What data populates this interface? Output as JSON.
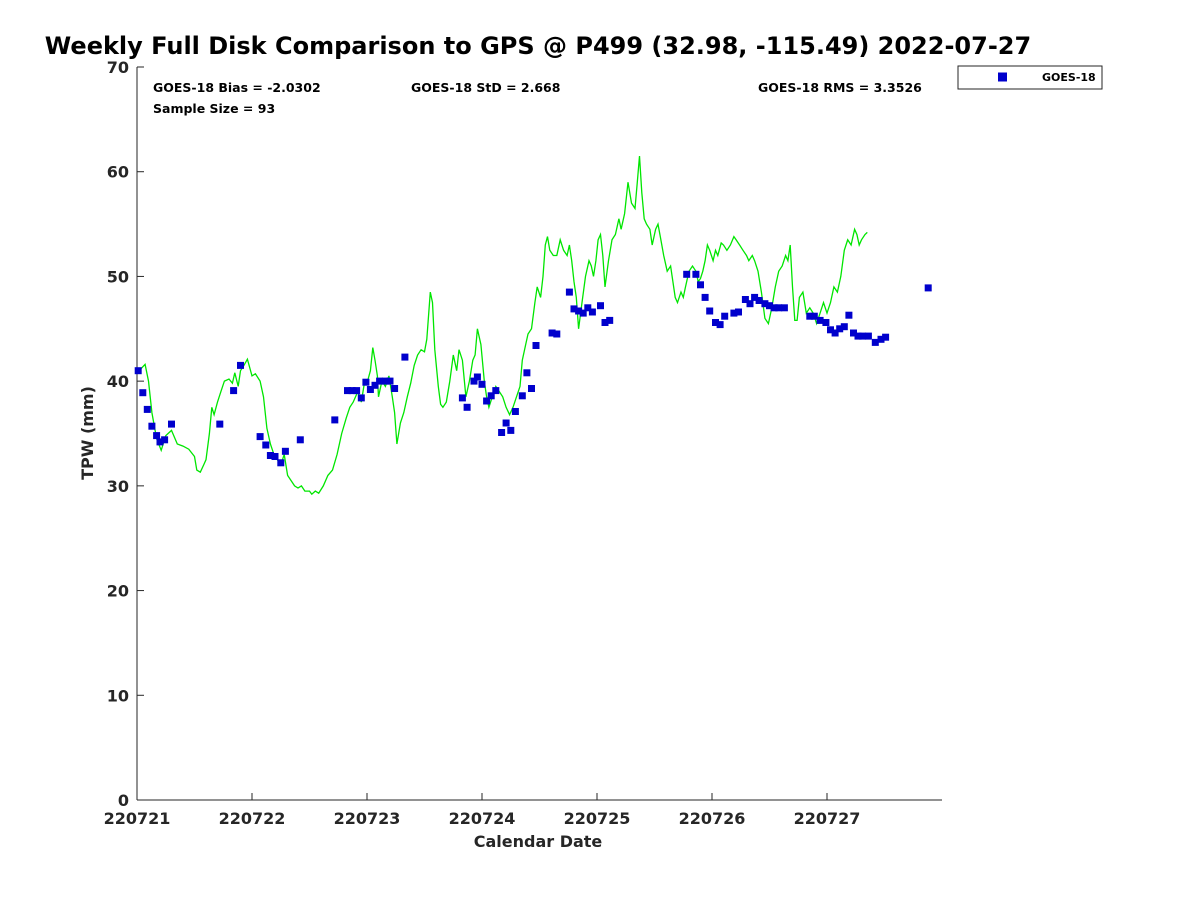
{
  "chart_data": {
    "type": "scatter",
    "title": "Weekly Full Disk Comparison to GPS @ P499 (32.98, -115.49) 2022-07-27",
    "xlabel": "Calendar Date",
    "ylabel": "TPW (mm)",
    "xlim": [
      0,
      7
    ],
    "ylim": [
      0,
      70
    ],
    "x_tick_values": [
      0,
      1,
      2,
      3,
      4,
      5,
      6
    ],
    "x_tick_labels": [
      "220721",
      "220722",
      "220723",
      "220724",
      "220725",
      "220726",
      "220727"
    ],
    "y_ticks": [
      0,
      10,
      20,
      30,
      40,
      50,
      60,
      70
    ],
    "y_tick_labels": [
      "0",
      "10",
      "20",
      "30",
      "40",
      "50",
      "60",
      "70"
    ],
    "stats": {
      "bias": "GOES-18 Bias = -2.0302",
      "std": "GOES-18 StD = 2.668",
      "rms": "GOES-18 RMS = 3.3526",
      "sample_size": "Sample Size = 93"
    },
    "legend": {
      "label": "GOES-18",
      "position": "top-right",
      "color": "#0000cc"
    },
    "gps_line": {
      "name": "GPS",
      "color": "#00e600",
      "anchors": [
        [
          0.0,
          40.8
        ],
        [
          0.07,
          41.6
        ],
        [
          0.1,
          40.0
        ],
        [
          0.13,
          37.0
        ],
        [
          0.17,
          34.5
        ],
        [
          0.21,
          33.4
        ],
        [
          0.25,
          34.8
        ],
        [
          0.3,
          35.3
        ],
        [
          0.35,
          34.0
        ],
        [
          0.4,
          33.8
        ],
        [
          0.45,
          33.5
        ],
        [
          0.5,
          32.8
        ],
        [
          0.52,
          31.5
        ],
        [
          0.55,
          31.3
        ],
        [
          0.58,
          32.0
        ],
        [
          0.6,
          32.5
        ],
        [
          0.63,
          35.0
        ],
        [
          0.65,
          37.5
        ],
        [
          0.67,
          36.8
        ],
        [
          0.7,
          38.0
        ],
        [
          0.73,
          39.0
        ],
        [
          0.76,
          40.0
        ],
        [
          0.8,
          40.2
        ],
        [
          0.83,
          39.8
        ],
        [
          0.85,
          40.8
        ],
        [
          0.88,
          39.5
        ],
        [
          0.9,
          41.0
        ],
        [
          0.93,
          41.5
        ],
        [
          0.96,
          42.1
        ],
        [
          1.0,
          40.5
        ],
        [
          1.03,
          40.7
        ],
        [
          1.07,
          40.0
        ],
        [
          1.1,
          38.5
        ],
        [
          1.13,
          35.5
        ],
        [
          1.16,
          34.0
        ],
        [
          1.19,
          33.0
        ],
        [
          1.22,
          32.5
        ],
        [
          1.25,
          32.0
        ],
        [
          1.28,
          33.0
        ],
        [
          1.31,
          31.0
        ],
        [
          1.34,
          30.5
        ],
        [
          1.37,
          30.0
        ],
        [
          1.4,
          29.8
        ],
        [
          1.43,
          30.0
        ],
        [
          1.46,
          29.5
        ],
        [
          1.5,
          29.5
        ],
        [
          1.52,
          29.2
        ],
        [
          1.55,
          29.5
        ],
        [
          1.58,
          29.3
        ],
        [
          1.62,
          30.0
        ],
        [
          1.66,
          31.0
        ],
        [
          1.7,
          31.5
        ],
        [
          1.74,
          33.0
        ],
        [
          1.78,
          35.0
        ],
        [
          1.82,
          36.5
        ],
        [
          1.85,
          37.5
        ],
        [
          1.88,
          38.0
        ],
        [
          1.92,
          39.0
        ],
        [
          1.95,
          38.0
        ],
        [
          1.98,
          40.0
        ],
        [
          2.0,
          39.8
        ],
        [
          2.03,
          41.0
        ],
        [
          2.05,
          43.2
        ],
        [
          2.07,
          42.0
        ],
        [
          2.09,
          40.5
        ],
        [
          2.1,
          38.5
        ],
        [
          2.13,
          40.0
        ],
        [
          2.16,
          39.5
        ],
        [
          2.19,
          40.5
        ],
        [
          2.22,
          38.5
        ],
        [
          2.24,
          37.0
        ],
        [
          2.26,
          34.0
        ],
        [
          2.29,
          36.0
        ],
        [
          2.32,
          37.0
        ],
        [
          2.35,
          38.5
        ],
        [
          2.38,
          39.8
        ],
        [
          2.41,
          41.5
        ],
        [
          2.44,
          42.5
        ],
        [
          2.47,
          43.0
        ],
        [
          2.5,
          42.8
        ],
        [
          2.52,
          44.0
        ],
        [
          2.55,
          48.5
        ],
        [
          2.57,
          47.5
        ],
        [
          2.59,
          43.0
        ],
        [
          2.62,
          39.5
        ],
        [
          2.64,
          37.8
        ],
        [
          2.66,
          37.5
        ],
        [
          2.69,
          38.0
        ],
        [
          2.72,
          40.0
        ],
        [
          2.75,
          42.5
        ],
        [
          2.78,
          41.0
        ],
        [
          2.8,
          43.0
        ],
        [
          2.83,
          42.0
        ],
        [
          2.86,
          38.5
        ],
        [
          2.89,
          40.0
        ],
        [
          2.92,
          42.0
        ],
        [
          2.94,
          42.5
        ],
        [
          2.96,
          45.0
        ],
        [
          2.99,
          43.5
        ],
        [
          3.02,
          40.0
        ],
        [
          3.04,
          38.5
        ],
        [
          3.06,
          37.5
        ],
        [
          3.09,
          38.5
        ],
        [
          3.12,
          39.5
        ],
        [
          3.15,
          39.0
        ],
        [
          3.18,
          38.5
        ],
        [
          3.21,
          37.5
        ],
        [
          3.24,
          36.8
        ],
        [
          3.27,
          37.5
        ],
        [
          3.3,
          38.5
        ],
        [
          3.33,
          39.5
        ],
        [
          3.35,
          42.0
        ],
        [
          3.38,
          43.5
        ],
        [
          3.4,
          44.5
        ],
        [
          3.43,
          45.0
        ],
        [
          3.46,
          47.5
        ],
        [
          3.48,
          49.0
        ],
        [
          3.51,
          48.0
        ],
        [
          3.53,
          50.0
        ],
        [
          3.55,
          53.0
        ],
        [
          3.57,
          53.8
        ],
        [
          3.59,
          52.5
        ],
        [
          3.62,
          52.0
        ],
        [
          3.65,
          52.0
        ],
        [
          3.68,
          53.5
        ],
        [
          3.71,
          52.5
        ],
        [
          3.74,
          52.0
        ],
        [
          3.76,
          53.0
        ],
        [
          3.78,
          51.5
        ],
        [
          3.8,
          49.5
        ],
        [
          3.82,
          48.0
        ],
        [
          3.84,
          45.0
        ],
        [
          3.87,
          47.5
        ],
        [
          3.9,
          50.0
        ],
        [
          3.93,
          51.5
        ],
        [
          3.95,
          51.0
        ],
        [
          3.97,
          50.0
        ],
        [
          3.99,
          51.5
        ],
        [
          4.01,
          53.5
        ],
        [
          4.03,
          54.0
        ],
        [
          4.05,
          52.0
        ],
        [
          4.07,
          49.0
        ],
        [
          4.1,
          51.5
        ],
        [
          4.13,
          53.5
        ],
        [
          4.16,
          54.0
        ],
        [
          4.19,
          55.5
        ],
        [
          4.21,
          54.5
        ],
        [
          4.24,
          56.0
        ],
        [
          4.27,
          59.0
        ],
        [
          4.3,
          57.0
        ],
        [
          4.33,
          56.5
        ],
        [
          4.35,
          59.0
        ],
        [
          4.37,
          61.5
        ],
        [
          4.39,
          58.0
        ],
        [
          4.41,
          55.5
        ],
        [
          4.43,
          55.0
        ],
        [
          4.46,
          54.5
        ],
        [
          4.48,
          53.0
        ],
        [
          4.51,
          54.5
        ],
        [
          4.53,
          55.0
        ],
        [
          4.55,
          53.8
        ],
        [
          4.58,
          52.0
        ],
        [
          4.61,
          50.5
        ],
        [
          4.64,
          51.0
        ],
        [
          4.66,
          49.5
        ],
        [
          4.68,
          48.0
        ],
        [
          4.7,
          47.5
        ],
        [
          4.73,
          48.5
        ],
        [
          4.75,
          48.0
        ],
        [
          4.77,
          49.0
        ],
        [
          4.8,
          50.5
        ],
        [
          4.83,
          51.0
        ],
        [
          4.86,
          50.5
        ],
        [
          4.88,
          49.5
        ],
        [
          4.9,
          49.8
        ],
        [
          4.92,
          50.5
        ],
        [
          4.94,
          51.5
        ],
        [
          4.96,
          53.0
        ],
        [
          4.98,
          52.5
        ],
        [
          5.01,
          51.5
        ],
        [
          5.03,
          52.5
        ],
        [
          5.05,
          52.0
        ],
        [
          5.08,
          53.2
        ],
        [
          5.1,
          53.0
        ],
        [
          5.13,
          52.5
        ],
        [
          5.16,
          53.0
        ],
        [
          5.19,
          53.8
        ],
        [
          5.21,
          53.5
        ],
        [
          5.24,
          53.0
        ],
        [
          5.27,
          52.5
        ],
        [
          5.3,
          52.0
        ],
        [
          5.32,
          51.5
        ],
        [
          5.35,
          52.0
        ],
        [
          5.37,
          51.5
        ],
        [
          5.4,
          50.5
        ],
        [
          5.43,
          48.5
        ],
        [
          5.46,
          46.0
        ],
        [
          5.49,
          45.5
        ],
        [
          5.52,
          47.0
        ],
        [
          5.55,
          49.0
        ],
        [
          5.58,
          50.5
        ],
        [
          5.61,
          51.0
        ],
        [
          5.64,
          52.0
        ],
        [
          5.66,
          51.5
        ],
        [
          5.68,
          53.0
        ],
        [
          5.7,
          49.0
        ],
        [
          5.72,
          45.8
        ],
        [
          5.74,
          45.8
        ],
        [
          5.76,
          48.0
        ],
        [
          5.79,
          48.5
        ],
        [
          5.82,
          46.5
        ],
        [
          5.85,
          47.0
        ],
        [
          5.88,
          46.5
        ],
        [
          5.91,
          45.5
        ],
        [
          5.94,
          46.5
        ],
        [
          5.97,
          47.5
        ],
        [
          6.0,
          46.5
        ],
        [
          6.03,
          47.5
        ],
        [
          6.06,
          49.0
        ],
        [
          6.09,
          48.5
        ],
        [
          6.12,
          50.0
        ],
        [
          6.15,
          52.5
        ],
        [
          6.18,
          53.5
        ],
        [
          6.21,
          53.0
        ],
        [
          6.24,
          54.5
        ],
        [
          6.26,
          54.0
        ],
        [
          6.28,
          53.0
        ],
        [
          6.3,
          53.5
        ],
        [
          6.33,
          54.0
        ],
        [
          6.35,
          54.2
        ]
      ]
    },
    "series": [
      {
        "name": "GOES-18",
        "color": "#0000cc",
        "points": [
          [
            0.01,
            41.0
          ],
          [
            0.05,
            38.9
          ],
          [
            0.09,
            37.3
          ],
          [
            0.13,
            35.7
          ],
          [
            0.17,
            34.8
          ],
          [
            0.2,
            34.2
          ],
          [
            0.24,
            34.4
          ],
          [
            0.3,
            35.9
          ],
          [
            0.72,
            35.9
          ],
          [
            0.84,
            39.1
          ],
          [
            0.9,
            41.5
          ],
          [
            1.07,
            34.7
          ],
          [
            1.12,
            33.9
          ],
          [
            1.16,
            32.9
          ],
          [
            1.2,
            32.8
          ],
          [
            1.25,
            32.2
          ],
          [
            1.29,
            33.3
          ],
          [
            1.42,
            34.4
          ],
          [
            1.72,
            36.3
          ],
          [
            1.83,
            39.1
          ],
          [
            1.87,
            39.1
          ],
          [
            1.91,
            39.1
          ],
          [
            1.95,
            38.4
          ],
          [
            1.99,
            39.9
          ],
          [
            2.03,
            39.2
          ],
          [
            2.07,
            39.6
          ],
          [
            2.11,
            40.0
          ],
          [
            2.16,
            40.0
          ],
          [
            2.2,
            40.0
          ],
          [
            2.24,
            39.3
          ],
          [
            2.33,
            42.3
          ],
          [
            2.83,
            38.4
          ],
          [
            2.87,
            37.5
          ],
          [
            2.93,
            40.0
          ],
          [
            2.96,
            40.4
          ],
          [
            3.0,
            39.7
          ],
          [
            3.04,
            38.1
          ],
          [
            3.08,
            38.6
          ],
          [
            3.12,
            39.1
          ],
          [
            3.17,
            35.1
          ],
          [
            3.21,
            36.0
          ],
          [
            3.25,
            35.3
          ],
          [
            3.29,
            37.1
          ],
          [
            3.35,
            38.6
          ],
          [
            3.39,
            40.8
          ],
          [
            3.43,
            39.3
          ],
          [
            3.47,
            43.4
          ],
          [
            3.61,
            44.6
          ],
          [
            3.65,
            44.5
          ],
          [
            3.76,
            48.5
          ],
          [
            3.8,
            46.9
          ],
          [
            3.84,
            46.7
          ],
          [
            3.88,
            46.5
          ],
          [
            3.92,
            47.0
          ],
          [
            3.96,
            46.6
          ],
          [
            4.03,
            47.2
          ],
          [
            4.07,
            45.6
          ],
          [
            4.11,
            45.8
          ],
          [
            4.78,
            50.2
          ],
          [
            4.86,
            50.2
          ],
          [
            4.9,
            49.2
          ],
          [
            4.94,
            48.0
          ],
          [
            4.98,
            46.7
          ],
          [
            5.03,
            45.6
          ],
          [
            5.07,
            45.4
          ],
          [
            5.11,
            46.2
          ],
          [
            5.19,
            46.5
          ],
          [
            5.23,
            46.6
          ],
          [
            5.29,
            47.8
          ],
          [
            5.33,
            47.4
          ],
          [
            5.37,
            48.0
          ],
          [
            5.41,
            47.7
          ],
          [
            5.46,
            47.4
          ],
          [
            5.5,
            47.2
          ],
          [
            5.54,
            47.0
          ],
          [
            5.58,
            47.0
          ],
          [
            5.63,
            47.0
          ],
          [
            5.85,
            46.2
          ],
          [
            5.89,
            46.2
          ],
          [
            5.94,
            45.8
          ],
          [
            5.99,
            45.6
          ],
          [
            6.03,
            44.9
          ],
          [
            6.07,
            44.6
          ],
          [
            6.11,
            45.0
          ],
          [
            6.15,
            45.2
          ],
          [
            6.19,
            46.3
          ],
          [
            6.23,
            44.6
          ],
          [
            6.27,
            44.3
          ],
          [
            6.31,
            44.3
          ],
          [
            6.36,
            44.3
          ],
          [
            6.42,
            43.7
          ],
          [
            6.47,
            44.0
          ],
          [
            6.51,
            44.2
          ],
          [
            6.88,
            48.9
          ]
        ]
      }
    ]
  }
}
